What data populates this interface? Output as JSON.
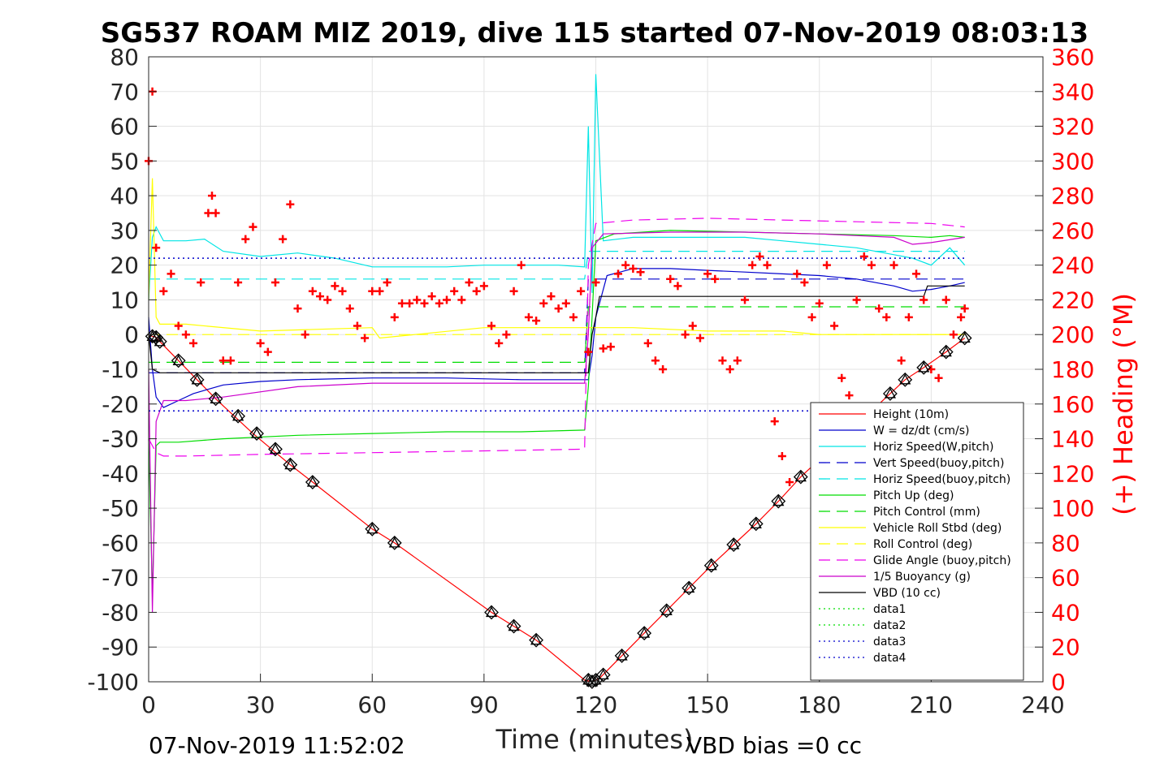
{
  "chart_data": {
    "type": "line",
    "title": "SG537 ROAM MIZ 2019, dive 115 started 07-Nov-2019 08:03:13",
    "xlabel": "Time (minutes)",
    "ylabel": "",
    "y2label": "(+) Heading (°M)",
    "xlim": [
      0,
      240
    ],
    "ylim": [
      -100,
      80
    ],
    "y2lim": [
      0,
      360
    ],
    "x_ticks": [
      "0",
      "30",
      "60",
      "90",
      "120",
      "150",
      "180",
      "210",
      "240"
    ],
    "y_ticks": [
      "80",
      "70",
      "60",
      "50",
      "40",
      "30",
      "20",
      "10",
      "0",
      "-10",
      "-20",
      "-30",
      "-40",
      "-50",
      "-60",
      "-70",
      "-80",
      "-90",
      "-100"
    ],
    "y2_ticks": [
      "360",
      "340",
      "320",
      "300",
      "280",
      "260",
      "240",
      "220",
      "200",
      "180",
      "160",
      "140",
      "120",
      "100",
      "80",
      "60",
      "40",
      "20",
      "0"
    ],
    "grid": true,
    "legend_position": "bottom-right",
    "footer_left": "07-Nov-2019 11:52:02",
    "footer_right": "VBD bias =0 cc",
    "colors": {
      "height": "#ff0000",
      "w": "#0000cc",
      "horiz": "#00e5e5",
      "pitch": "#00dd00",
      "roll": "#ffff00",
      "glide": "#ee00ee",
      "buoy": "#cc00cc",
      "vbd": "#000000",
      "heading": "#ff0000"
    },
    "series": [
      {
        "name": "Height (10m)",
        "key": "height",
        "style": "solid",
        "x": [
          0,
          1,
          2,
          3,
          8,
          13,
          18,
          23,
          28,
          33,
          38,
          44,
          60,
          66,
          92,
          98,
          104,
          117,
          119,
          121,
          127,
          133,
          139,
          145,
          151,
          157,
          163,
          169,
          175,
          199,
          203,
          208,
          214,
          219
        ],
        "y": [
          0,
          -0.5,
          -0.8,
          -2,
          -7.5,
          -13,
          -18.5,
          -23.5,
          -28.5,
          -33,
          -37.5,
          -42.5,
          -56,
          -60,
          -80,
          -84,
          -88,
          -99.5,
          -100,
          -99,
          -92.5,
          -86,
          -79.5,
          -73,
          -66.5,
          -60.5,
          -54.5,
          -48,
          -41,
          -17,
          -13,
          -9.5,
          -5,
          -1
        ]
      },
      {
        "name": "W = dz/dt (cm/s)",
        "key": "w",
        "style": "solid",
        "x": [
          0,
          1,
          2,
          4,
          8,
          12,
          20,
          30,
          40,
          60,
          80,
          100,
          118,
          119,
          120,
          123,
          130,
          140,
          150,
          160,
          170,
          180,
          190,
          200,
          205,
          210,
          215,
          219
        ],
        "y": [
          5,
          -10,
          -18,
          -21,
          -19,
          -17,
          -14.5,
          -13.5,
          -13,
          -12.5,
          -12.5,
          -13,
          -13,
          -6,
          5,
          17,
          19,
          19,
          18.5,
          18,
          17.5,
          17,
          16,
          14,
          12.5,
          13,
          14,
          15
        ]
      },
      {
        "name": "Horiz Speed(W,pitch)",
        "key": "horiz",
        "style": "solid",
        "x": [
          0,
          1,
          2,
          4,
          10,
          15,
          20,
          30,
          40,
          50,
          60,
          70,
          80,
          90,
          100,
          110,
          117,
          118,
          119,
          120,
          122,
          130,
          140,
          150,
          160,
          170,
          180,
          190,
          200,
          205,
          210,
          215,
          219
        ],
        "y": [
          10,
          28,
          31,
          27,
          27,
          27.5,
          24,
          22.5,
          23.5,
          22,
          19.5,
          19.5,
          19.5,
          20,
          20,
          20,
          19.5,
          60,
          12,
          75,
          27,
          28,
          28,
          28,
          28,
          27,
          26,
          25,
          23,
          22,
          20,
          25,
          20
        ]
      },
      {
        "name": "Vert Speed(buoy,pitch)",
        "key": "w",
        "style": "dash",
        "x": [
          0,
          117,
          118,
          219
        ],
        "y": [
          -11,
          -11,
          16,
          16
        ]
      },
      {
        "name": "Horiz Speed(buoy,pitch)",
        "key": "horiz",
        "style": "dash",
        "x": [
          0,
          117,
          118,
          219
        ],
        "y": [
          16,
          16,
          24,
          24
        ]
      },
      {
        "name": "Pitch Up (deg)",
        "key": "pitch",
        "style": "solid",
        "x": [
          0,
          1,
          2,
          3,
          8,
          20,
          40,
          60,
          80,
          100,
          117,
          118,
          119,
          120,
          125,
          140,
          160,
          180,
          200,
          210,
          215,
          219
        ],
        "y": [
          -30,
          -75,
          -32,
          -31,
          -31,
          -30,
          -29,
          -28.5,
          -28,
          -28,
          -27.5,
          -15,
          5,
          27,
          29,
          30,
          29.5,
          29,
          28.5,
          28,
          28.5,
          28
        ]
      },
      {
        "name": "Pitch Control (mm)",
        "key": "pitch",
        "style": "dash",
        "x": [
          0,
          117,
          118,
          219
        ],
        "y": [
          -8,
          -8,
          8,
          8
        ]
      },
      {
        "name": "Vehicle Roll Stbd (deg)",
        "key": "roll",
        "style": "solid",
        "x": [
          0,
          1,
          2,
          3,
          10,
          30,
          60,
          62,
          90,
          117,
          118,
          130,
          150,
          170,
          180,
          200,
          210,
          219
        ],
        "y": [
          10,
          45,
          5,
          3,
          3,
          1,
          2,
          -1,
          2,
          2,
          2,
          2,
          1,
          1,
          0,
          0,
          0,
          0
        ]
      },
      {
        "name": "Roll Control (deg)",
        "key": "roll",
        "style": "dash",
        "x": [
          0,
          219
        ],
        "y": [
          0,
          0
        ]
      },
      {
        "name": "Glide Angle (buoy,pitch)",
        "key": "glide",
        "style": "dash",
        "x": [
          0,
          2,
          4,
          10,
          30,
          60,
          90,
          117,
          118,
          120,
          130,
          150,
          170,
          190,
          210,
          219
        ],
        "y": [
          -30,
          -34,
          -35,
          -35,
          -34.5,
          -34,
          -33.5,
          -33,
          20,
          32,
          33,
          33.5,
          33,
          32.5,
          32,
          31
        ]
      },
      {
        "name": "1/5 Buoyancy (g)",
        "key": "buoy",
        "style": "solid",
        "x": [
          0,
          1,
          2,
          4,
          10,
          20,
          40,
          60,
          80,
          100,
          117,
          118,
          119,
          122,
          140,
          160,
          180,
          190,
          200,
          205,
          210,
          219
        ],
        "y": [
          -10,
          -80,
          -25,
          -19,
          -19,
          -18,
          -15,
          -14,
          -14,
          -14,
          -14,
          0,
          25,
          29,
          29.5,
          29.5,
          29,
          28.5,
          28,
          26,
          26.5,
          28
        ]
      },
      {
        "name": "VBD (10 cc)",
        "key": "vbd",
        "style": "solid",
        "x": [
          0,
          1,
          3,
          117,
          118,
          119,
          120,
          121,
          208,
          209,
          219
        ],
        "y": [
          0,
          -10,
          -11,
          -11,
          -11,
          0,
          5,
          11,
          11,
          14,
          14
        ]
      },
      {
        "name": "data1",
        "key": "pitch",
        "style": "dot",
        "x": [],
        "y": []
      },
      {
        "name": "data2",
        "key": "pitch",
        "style": "dot",
        "x": [],
        "y": []
      },
      {
        "name": "data3",
        "key": "w",
        "style": "dot",
        "x": [
          0,
          219
        ],
        "y": [
          22,
          22
        ]
      },
      {
        "name": "data4",
        "key": "w",
        "style": "dot",
        "x": [
          0,
          219
        ],
        "y": [
          -22,
          -22
        ]
      }
    ],
    "heading_series": {
      "name": "Heading",
      "x": [
        0,
        1,
        2,
        4,
        6,
        8,
        10,
        12,
        14,
        16,
        17,
        18,
        20,
        22,
        24,
        26,
        28,
        30,
        32,
        34,
        36,
        38,
        40,
        42,
        44,
        46,
        48,
        50,
        52,
        54,
        56,
        58,
        60,
        62,
        64,
        66,
        68,
        70,
        72,
        74,
        76,
        78,
        80,
        82,
        84,
        86,
        88,
        90,
        92,
        94,
        96,
        98,
        100,
        102,
        104,
        106,
        108,
        110,
        112,
        114,
        116,
        118,
        120,
        122,
        124,
        126,
        128,
        130,
        132,
        134,
        136,
        138,
        140,
        142,
        144,
        146,
        148,
        150,
        152,
        154,
        156,
        158,
        160,
        162,
        164,
        166,
        168,
        170,
        172,
        174,
        176,
        178,
        180,
        182,
        184,
        186,
        188,
        190,
        192,
        194,
        196,
        198,
        200,
        202,
        204,
        206,
        208,
        210,
        212,
        214,
        216,
        218,
        219
      ],
      "y": [
        300,
        340,
        250,
        225,
        235,
        205,
        200,
        195,
        230,
        270,
        280,
        270,
        185,
        185,
        230,
        255,
        262,
        195,
        190,
        230,
        255,
        275,
        215,
        200,
        225,
        222,
        220,
        228,
        225,
        215,
        205,
        198,
        225,
        225,
        230,
        210,
        218,
        218,
        220,
        218,
        222,
        218,
        220,
        225,
        220,
        230,
        225,
        228,
        205,
        195,
        200,
        225,
        240,
        210,
        208,
        218,
        222,
        215,
        218,
        210,
        225,
        190,
        230,
        192,
        193,
        235,
        240,
        238,
        236,
        195,
        185,
        180,
        232,
        228,
        200,
        205,
        198,
        235,
        232,
        185,
        180,
        185,
        220,
        240,
        245,
        240,
        150,
        130,
        115,
        235,
        230,
        210,
        218,
        240,
        205,
        175,
        165,
        220,
        245,
        240,
        215,
        210,
        240,
        185,
        210,
        235,
        220,
        180,
        175,
        220,
        200,
        210,
        215
      ]
    },
    "marker_series": {
      "name": "Height markers",
      "x": [
        1,
        2,
        3,
        8,
        13,
        18,
        24,
        29,
        34,
        38,
        44,
        60,
        66,
        92,
        98,
        104,
        118,
        119,
        120,
        122,
        127,
        133,
        139,
        145,
        151,
        157,
        163,
        169,
        175,
        199,
        203,
        208,
        214,
        219
      ],
      "y": [
        -0.5,
        -0.8,
        -2,
        -7.5,
        -13,
        -18.5,
        -23.5,
        -28.5,
        -33,
        -37.5,
        -42.5,
        -56,
        -60,
        -80,
        -84,
        -88,
        -99.5,
        -100,
        -99.5,
        -98,
        -92.5,
        -86,
        -79.5,
        -73,
        -66.5,
        -60.5,
        -54.5,
        -48,
        -41,
        -17,
        -13,
        -9.5,
        -5,
        -1
      ]
    }
  }
}
